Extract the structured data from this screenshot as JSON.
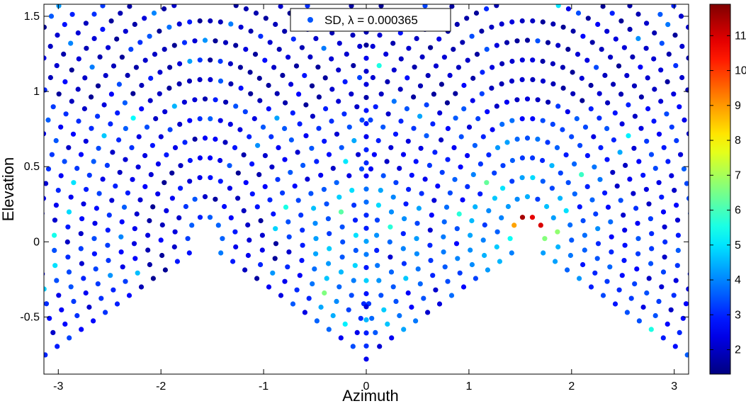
{
  "chart_data": {
    "type": "scatter",
    "xlabel": "Azimuth",
    "ylabel": "Elevation",
    "xlim": [
      -3.14,
      3.14
    ],
    "ylim": [
      -0.88,
      1.58
    ],
    "xticks": [
      "-3",
      "-2",
      "-1",
      "0",
      "1",
      "2",
      "3"
    ],
    "xtick_values": [
      -3,
      -2,
      -1,
      0,
      1,
      2,
      3
    ],
    "yticks": [
      "-0.5",
      "0",
      "0.5",
      "1",
      "1.5"
    ],
    "ytick_values": [
      -0.5,
      0,
      0.5,
      1,
      1.5
    ],
    "legend": {
      "label": "SD, λ = 0.000365",
      "position": "top-center"
    },
    "colorbar": {
      "colormap": "jet",
      "range": [
        1.3,
        11.9
      ],
      "ticks": [
        "2",
        "3",
        "4",
        "5",
        "6",
        "7",
        "8",
        "9",
        "10",
        "11"
      ],
      "tick_values": [
        2,
        3,
        4,
        5,
        6,
        7,
        8,
        9,
        10,
        11
      ],
      "colors": [
        "#00008f",
        "#0000ff",
        "#00ffff",
        "#ffff00",
        "#ff0000",
        "#800000"
      ]
    },
    "series": [
      {
        "description": "Directional sampling points of a sphere, each colored by its SD value",
        "field": {
          "poles": [
            {
              "azimuth": -1.57,
              "elevation": 0.0,
              "side": "left"
            },
            {
              "azimuth": 1.57,
              "elevation": 0.0,
              "side": "right"
            }
          ],
          "rings": 24,
          "value_range": [
            1.5,
            11.5
          ],
          "peak_value": 11.4,
          "peak_location": {
            "azimuth": 1.55,
            "elevation": 0.17
          }
        }
      }
    ]
  }
}
